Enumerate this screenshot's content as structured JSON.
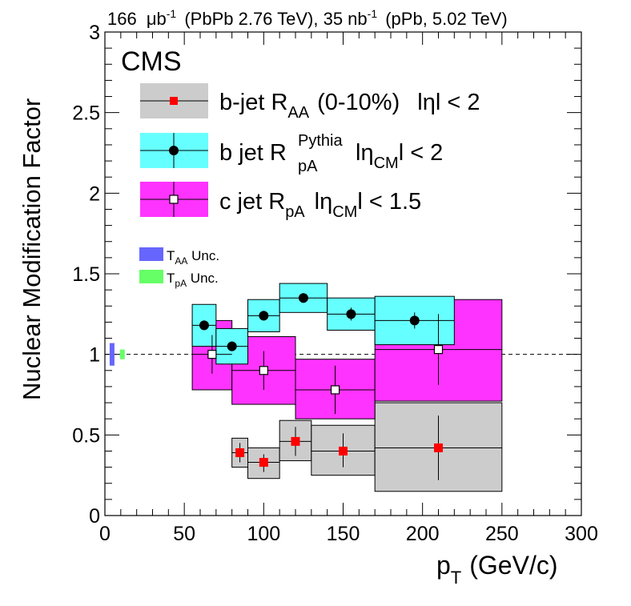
{
  "chart_data": {
    "type": "scatter",
    "header": {
      "lumi1": "166",
      "unit1_prefix": "μb",
      "unit1_exp": "-1",
      "label1": "(PbPb 2.76 TeV), 35 nb",
      "unit2_exp": "-1",
      "label2": "(pPb, 5.02 TeV)"
    },
    "experiment": "CMS",
    "ylabel": "Nuclear Modification Factor",
    "xlabel_main": "p",
    "xlabel_sub": "T",
    "xlabel_unit": "(GeV/c)",
    "xlim": [
      0,
      300
    ],
    "ylim": [
      0,
      3
    ],
    "xticks": [
      "0",
      "50",
      "100",
      "150",
      "200",
      "250",
      "300"
    ],
    "yticks": [
      "0",
      "0.5",
      "1",
      "1.5",
      "2",
      "2.5",
      "3"
    ],
    "reference_line": 1,
    "legend": [
      {
        "text": "b-jet R",
        "sub": "AA",
        "sup": "",
        "after": "(0-10%)",
        "eta": "lηl < 2",
        "eta_sub": ""
      },
      {
        "text": "b jet R",
        "sub": "pA",
        "sup": "Pythia",
        "after": "",
        "eta": "lη",
        "eta_sub": "CM",
        "eta_after": "l < 2"
      },
      {
        "text": "c jet R",
        "sub": "pA",
        "sup": "",
        "after": "",
        "eta": "lη",
        "eta_sub": "CM",
        "eta_after": "l < 1.5"
      }
    ],
    "unc_legend": [
      {
        "label": "T",
        "sub": "AA",
        "after": " Unc.",
        "color": "#6666ff"
      },
      {
        "label": "T",
        "sub": "pA",
        "after": " Unc.",
        "color": "#66ff66"
      }
    ],
    "colors": {
      "bjet_raa_box": "#cccccc",
      "bjet_raa_marker": "#ff0000",
      "bjet_rpa_box": "#66ffff",
      "cjet_rpa_box": "#ff33ff",
      "taa": "#6666ff",
      "tpa": "#66ff66"
    },
    "series": [
      {
        "name": "b-jet RAA (0-10%)",
        "style": "red-square",
        "points": [
          {
            "x": 85,
            "y": 0.39,
            "xlow": 80,
            "xhigh": 90,
            "sys_low": 0.3,
            "sys_high": 0.48,
            "stat_low": 0.33,
            "stat_high": 0.45
          },
          {
            "x": 100,
            "y": 0.33,
            "xlow": 90,
            "xhigh": 110,
            "sys_low": 0.23,
            "sys_high": 0.42,
            "stat_low": 0.27,
            "stat_high": 0.38
          },
          {
            "x": 120,
            "y": 0.46,
            "xlow": 110,
            "xhigh": 130,
            "sys_low": 0.34,
            "sys_high": 0.59,
            "stat_low": 0.37,
            "stat_high": 0.55
          },
          {
            "x": 150,
            "y": 0.4,
            "xlow": 130,
            "xhigh": 170,
            "sys_low": 0.25,
            "sys_high": 0.56,
            "stat_low": 0.3,
            "stat_high": 0.51
          },
          {
            "x": 210,
            "y": 0.42,
            "xlow": 170,
            "xhigh": 250,
            "sys_low": 0.15,
            "sys_high": 0.7,
            "stat_low": 0.22,
            "stat_high": 0.62
          }
        ]
      },
      {
        "name": "b jet RpA Pythia",
        "style": "black-circle",
        "points": [
          {
            "x": 62.5,
            "y": 1.18,
            "xlow": 55,
            "xhigh": 70,
            "sys_low": 1.05,
            "sys_high": 1.31,
            "stat_low": 1.15,
            "stat_high": 1.21
          },
          {
            "x": 80,
            "y": 1.05,
            "xlow": 70,
            "xhigh": 90,
            "sys_low": 0.94,
            "sys_high": 1.16,
            "stat_low": 1.02,
            "stat_high": 1.08
          },
          {
            "x": 100,
            "y": 1.24,
            "xlow": 90,
            "xhigh": 110,
            "sys_low": 1.14,
            "sys_high": 1.34,
            "stat_low": 1.21,
            "stat_high": 1.27
          },
          {
            "x": 125,
            "y": 1.35,
            "xlow": 110,
            "xhigh": 140,
            "sys_low": 1.26,
            "sys_high": 1.44,
            "stat_low": 1.32,
            "stat_high": 1.38
          },
          {
            "x": 155,
            "y": 1.25,
            "xlow": 140,
            "xhigh": 170,
            "sys_low": 1.15,
            "sys_high": 1.35,
            "stat_low": 1.21,
            "stat_high": 1.29
          },
          {
            "x": 195,
            "y": 1.21,
            "xlow": 170,
            "xhigh": 220,
            "sys_low": 1.06,
            "sys_high": 1.36,
            "stat_low": 1.16,
            "stat_high": 1.26
          }
        ]
      },
      {
        "name": "c jet RpA",
        "style": "open-square",
        "points": [
          {
            "x": 67.5,
            "y": 1.0,
            "xlow": 55,
            "xhigh": 80,
            "sys_low": 0.78,
            "sys_high": 1.21,
            "stat_low": 0.88,
            "stat_high": 1.12
          },
          {
            "x": 100,
            "y": 0.9,
            "xlow": 80,
            "xhigh": 120,
            "sys_low": 0.69,
            "sys_high": 1.11,
            "stat_low": 0.78,
            "stat_high": 1.02
          },
          {
            "x": 145,
            "y": 0.78,
            "xlow": 120,
            "xhigh": 170,
            "sys_low": 0.6,
            "sys_high": 0.97,
            "stat_low": 0.63,
            "stat_high": 0.93
          },
          {
            "x": 210,
            "y": 1.03,
            "xlow": 170,
            "xhigh": 250,
            "sys_low": 0.71,
            "sys_high": 1.34,
            "stat_low": 0.81,
            "stat_high": 1.25
          }
        ]
      }
    ],
    "norm_unc": [
      {
        "name": "TAA Unc.",
        "x": 4.5,
        "ylow": 0.93,
        "yhigh": 1.07,
        "color": "#6666ff"
      },
      {
        "name": "TpA Unc.",
        "x": 11,
        "ylow": 0.97,
        "yhigh": 1.03,
        "color": "#66ff66"
      }
    ]
  }
}
